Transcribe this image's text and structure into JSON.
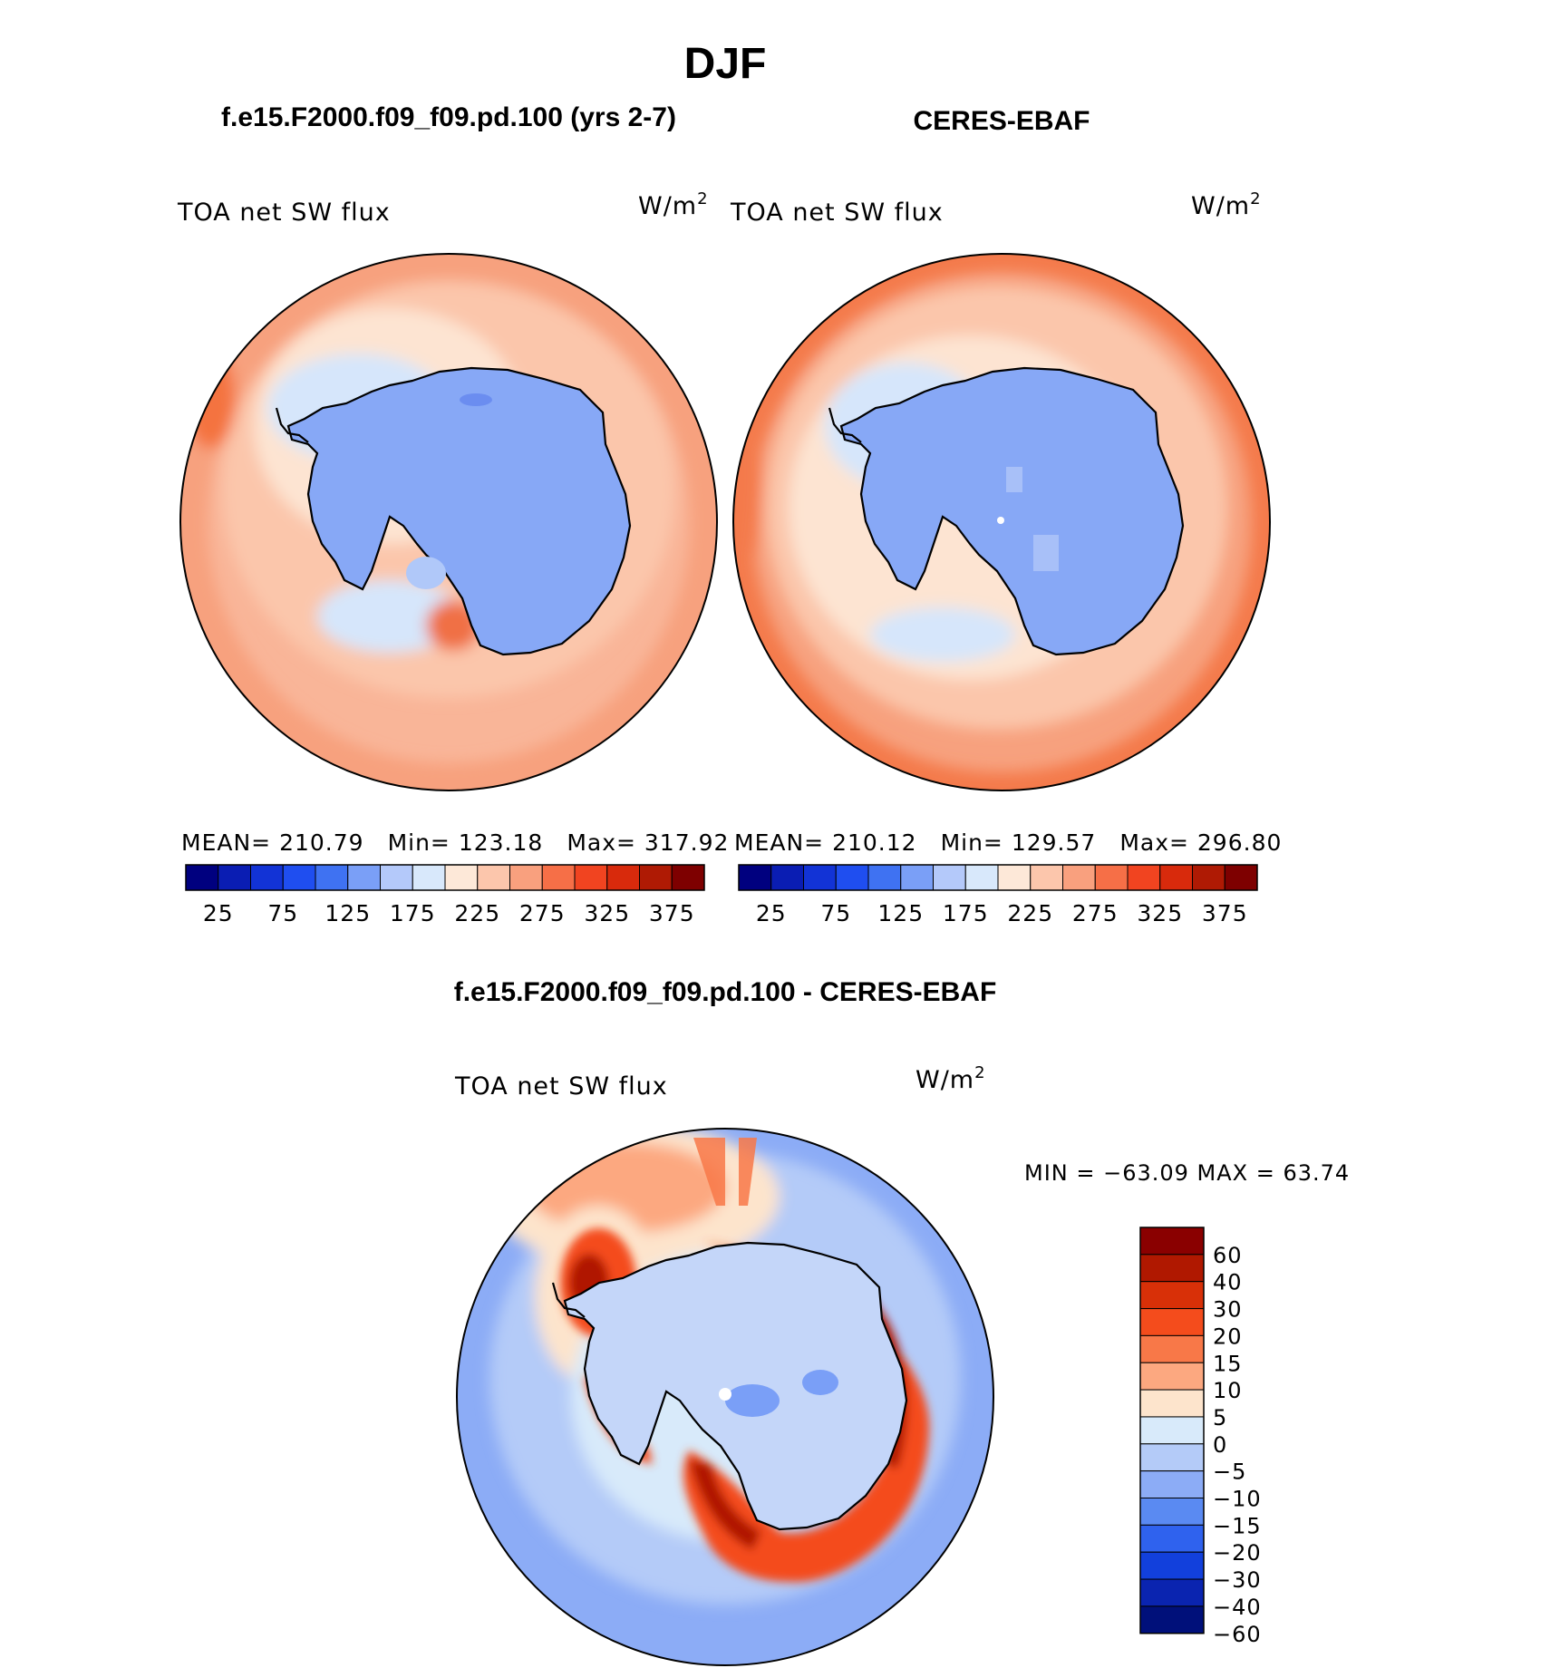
{
  "page_title": "DJF",
  "chart_data": [
    {
      "type": "heatmap",
      "projection": "south-polar-stereographic",
      "title": "f.e15.F2000.f09_f09.pd.100 (yrs 2-7)",
      "variable": "TOA net SW flux",
      "units_base": "W/m",
      "units_exp": "2",
      "stats": {
        "mean": "210.79",
        "min": "123.18",
        "max": "317.92"
      },
      "stats_labels": {
        "mean": "MEAN=",
        "min": "Min=",
        "max": "Max="
      },
      "colorbar": {
        "orientation": "horizontal",
        "colors": [
          "#00007f",
          "#0a1db3",
          "#1233d6",
          "#1f4ef0",
          "#3f72f2",
          "#7a9ff7",
          "#b4c9fa",
          "#d8e8fb",
          "#fde8d8",
          "#fcc6ac",
          "#f9a07e",
          "#f66f47",
          "#f14420",
          "#d82a0c",
          "#af1a04",
          "#7e0000"
        ],
        "tick_labels": [
          "25",
          "75",
          "125",
          "175",
          "225",
          "275",
          "325",
          "375"
        ]
      }
    },
    {
      "type": "heatmap",
      "projection": "south-polar-stereographic",
      "title": "CERES-EBAF",
      "variable": "TOA net SW flux",
      "units_base": "W/m",
      "units_exp": "2",
      "stats": {
        "mean": "210.12",
        "min": "129.57",
        "max": "296.80"
      },
      "stats_labels": {
        "mean": "MEAN=",
        "min": "Min=",
        "max": "Max="
      },
      "colorbar": {
        "orientation": "horizontal",
        "colors": [
          "#00007f",
          "#0a1db3",
          "#1233d6",
          "#1f4ef0",
          "#3f72f2",
          "#7a9ff7",
          "#b4c9fa",
          "#d8e8fb",
          "#fde8d8",
          "#fcc6ac",
          "#f9a07e",
          "#f66f47",
          "#f14420",
          "#d82a0c",
          "#af1a04",
          "#7e0000"
        ],
        "tick_labels": [
          "25",
          "75",
          "125",
          "175",
          "225",
          "275",
          "325",
          "375"
        ]
      }
    },
    {
      "type": "heatmap",
      "projection": "south-polar-stereographic",
      "title": "f.e15.F2000.f09_f09.pd.100 - CERES-EBAF",
      "variable": "TOA net SW flux",
      "units_base": "W/m",
      "units_exp": "2",
      "stats_text": "MIN = −63.09 MAX =   63.74",
      "colorbar": {
        "orientation": "vertical",
        "colors": [
          "#8a0000",
          "#b01800",
          "#d83008",
          "#f44c1c",
          "#f87848",
          "#fca880",
          "#fde4cc",
          "#d8eafa",
          "#b4cbf8",
          "#8cacf6",
          "#5a8af2",
          "#2f62ee",
          "#1240dc",
          "#0a24b0",
          "#00107a"
        ],
        "tick_labels": [
          "60",
          "40",
          "30",
          "20",
          "15",
          "10",
          "5",
          "0",
          "−5",
          "−10",
          "−15",
          "−20",
          "−30",
          "−40",
          "−60"
        ]
      }
    }
  ]
}
